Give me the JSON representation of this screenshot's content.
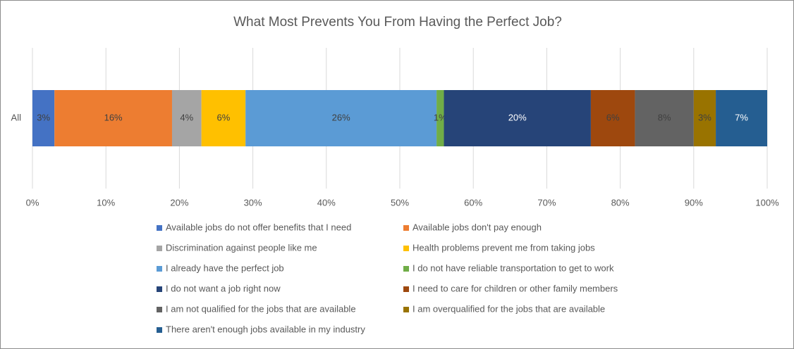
{
  "chart_data": {
    "type": "stacked_bar_horizontal",
    "title": "What Most Prevents You From Having the Perfect Job?",
    "categories": [
      "All"
    ],
    "xlim": [
      0,
      100
    ],
    "xticks": [
      {
        "value": 0,
        "label": "0%"
      },
      {
        "value": 10,
        "label": "10%"
      },
      {
        "value": 20,
        "label": "20%"
      },
      {
        "value": 30,
        "label": "30%"
      },
      {
        "value": 40,
        "label": "40%"
      },
      {
        "value": 50,
        "label": "50%"
      },
      {
        "value": 60,
        "label": "60%"
      },
      {
        "value": 70,
        "label": "70%"
      },
      {
        "value": 80,
        "label": "80%"
      },
      {
        "value": 90,
        "label": "90%"
      },
      {
        "value": 100,
        "label": "100%"
      }
    ],
    "grid": true,
    "legend": "bottom",
    "series": [
      {
        "name": "Available jobs do not offer benefits that I need",
        "color": "#4472c4",
        "values": [
          3
        ],
        "value_labels": [
          "3%"
        ]
      },
      {
        "name": "Available jobs don't pay enough",
        "color": "#ed7d31",
        "values": [
          16
        ],
        "value_labels": [
          "16%"
        ]
      },
      {
        "name": "Discrimination against people like me",
        "color": "#a5a5a5",
        "values": [
          4
        ],
        "value_labels": [
          "4%"
        ]
      },
      {
        "name": "Health problems prevent me from taking jobs",
        "color": "#ffc000",
        "values": [
          6
        ],
        "value_labels": [
          "6%"
        ]
      },
      {
        "name": "I already have the perfect job",
        "color": "#5b9bd5",
        "values": [
          26
        ],
        "value_labels": [
          "26%"
        ]
      },
      {
        "name": "I do not have reliable transportation to get to work",
        "color": "#70ad47",
        "values": [
          1
        ],
        "value_labels": [
          "1%"
        ]
      },
      {
        "name": "I do not want a job right now",
        "color": "#264478",
        "values": [
          20
        ],
        "value_labels": [
          "20%"
        ]
      },
      {
        "name": "I need to care for children or other family members",
        "color": "#9e480e",
        "values": [
          6
        ],
        "value_labels": [
          "6%"
        ]
      },
      {
        "name": "I am not qualified for the jobs that are available",
        "color": "#636363",
        "values": [
          8
        ],
        "value_labels": [
          "8%"
        ]
      },
      {
        "name": "I am overqualified for the jobs that are available",
        "color": "#997300",
        "values": [
          3
        ],
        "value_labels": [
          "3%"
        ]
      },
      {
        "name": "There aren't enough jobs available in my industry",
        "color": "#255e91",
        "values": [
          7
        ],
        "value_labels": [
          "7%"
        ]
      }
    ]
  }
}
